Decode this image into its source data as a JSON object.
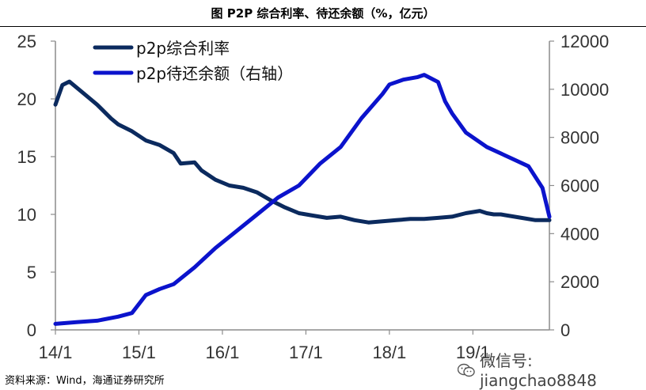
{
  "title": "图  P2P 综合利率、待还余额（%，亿元）",
  "source": "资料来源：Wind，海通证券研究所",
  "watermark": "微信号: jiangchao8848",
  "colors": {
    "rate": "#0b2a5e",
    "balance": "#0b13cc"
  },
  "chart_data": {
    "type": "line",
    "title": "P2P 综合利率、待还余额（%，亿元）",
    "x_ticks": [
      "14/1",
      "15/1",
      "16/1",
      "17/1",
      "18/1",
      "19/1"
    ],
    "x_range": [
      "2014-01",
      "2019-12"
    ],
    "y_left": {
      "label": "%",
      "ticks": [
        0,
        5,
        10,
        15,
        20,
        25
      ],
      "range": [
        0,
        25
      ]
    },
    "y_right": {
      "label": "亿元",
      "ticks": [
        0,
        2000,
        4000,
        6000,
        8000,
        10000,
        12000
      ],
      "range": [
        0,
        12000
      ]
    },
    "legend_position": "top-left",
    "grid": false,
    "series": [
      {
        "name": "p2p综合利率",
        "axis": "left",
        "x": [
          "2014-01",
          "2014-02",
          "2014-03",
          "2014-05",
          "2014-07",
          "2014-09",
          "2014-10",
          "2014-12",
          "2015-02",
          "2015-04",
          "2015-06",
          "2015-07",
          "2015-09",
          "2015-10",
          "2015-12",
          "2016-02",
          "2016-04",
          "2016-06",
          "2016-08",
          "2016-10",
          "2016-12",
          "2017-02",
          "2017-04",
          "2017-06",
          "2017-08",
          "2017-10",
          "2017-12",
          "2018-02",
          "2018-04",
          "2018-06",
          "2018-08",
          "2018-10",
          "2018-12",
          "2019-02",
          "2019-03",
          "2019-04",
          "2019-05",
          "2019-06",
          "2019-08",
          "2019-10",
          "2019-12"
        ],
        "values": [
          19.5,
          21.2,
          21.5,
          20.5,
          19.5,
          18.3,
          17.8,
          17.2,
          16.4,
          16.0,
          15.3,
          14.4,
          14.5,
          13.8,
          13.0,
          12.5,
          12.3,
          11.9,
          11.2,
          10.6,
          10.1,
          9.9,
          9.7,
          9.8,
          9.5,
          9.3,
          9.4,
          9.5,
          9.6,
          9.6,
          9.7,
          9.8,
          10.1,
          10.3,
          10.1,
          10.0,
          10.0,
          9.9,
          9.7,
          9.5,
          9.5
        ]
      },
      {
        "name": "p2p待还余额（右轴）",
        "axis": "right",
        "x": [
          "2014-01",
          "2014-04",
          "2014-07",
          "2014-10",
          "2014-12",
          "2015-02",
          "2015-04",
          "2015-06",
          "2015-09",
          "2015-12",
          "2016-03",
          "2016-06",
          "2016-09",
          "2016-12",
          "2017-03",
          "2017-06",
          "2017-09",
          "2017-12",
          "2018-01",
          "2018-03",
          "2018-05",
          "2018-06",
          "2018-08",
          "2018-09",
          "2018-10",
          "2018-12",
          "2019-03",
          "2019-06",
          "2019-09",
          "2019-11",
          "2019-12"
        ],
        "values": [
          250,
          320,
          380,
          550,
          700,
          1450,
          1700,
          1900,
          2600,
          3400,
          4100,
          4800,
          5500,
          6000,
          6900,
          7600,
          8800,
          9800,
          10200,
          10400,
          10500,
          10600,
          10300,
          9500,
          9000,
          8200,
          7600,
          7200,
          6800,
          5900,
          4700
        ]
      }
    ]
  }
}
